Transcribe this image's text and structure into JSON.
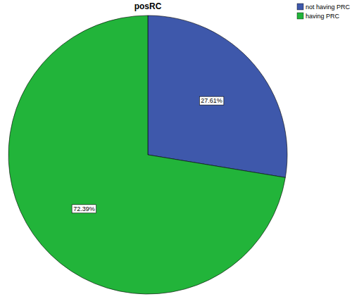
{
  "chart_data": {
    "type": "pie",
    "title": "posRC",
    "categories": [
      "not having PRC",
      "having PRC"
    ],
    "values": [
      27.61,
      72.39
    ],
    "value_labels": [
      "27.61%",
      "72.39%"
    ],
    "colors": [
      "#3e58ab",
      "#22b43a"
    ],
    "data_labels": true,
    "legend": "top-right"
  }
}
